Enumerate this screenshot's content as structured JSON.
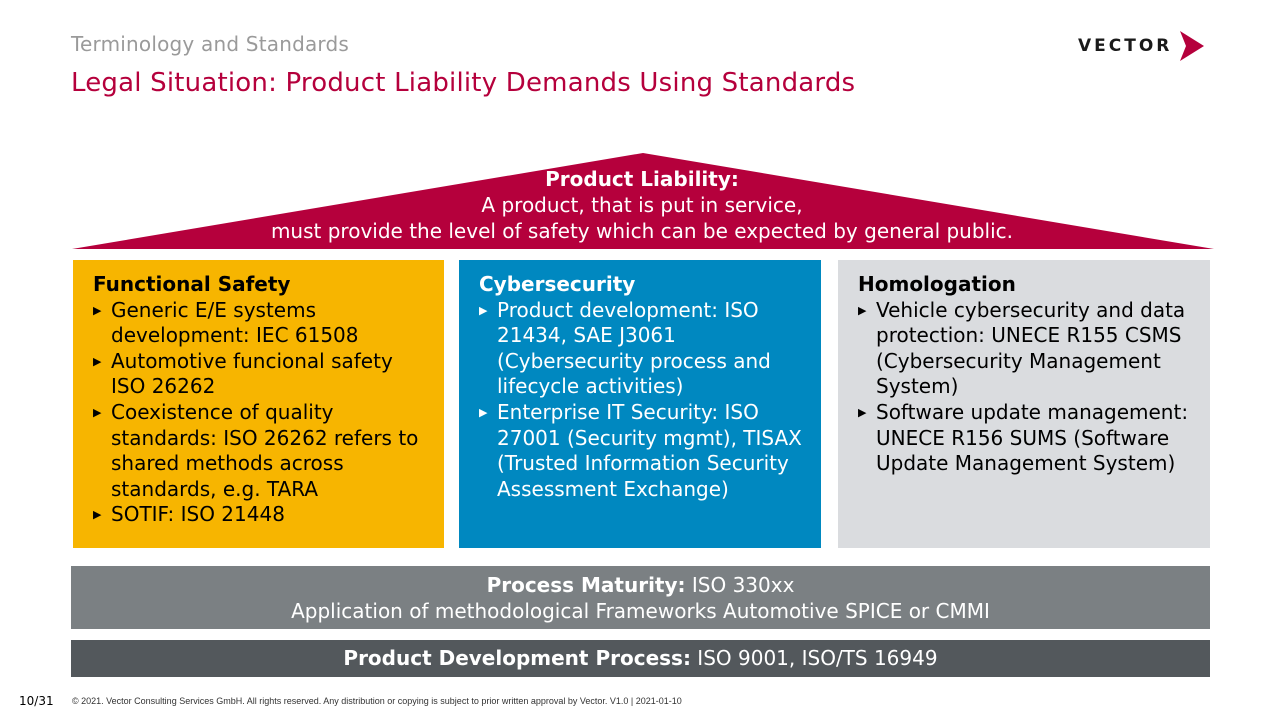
{
  "header": {
    "breadcrumb": "Terminology and Standards",
    "title": "Legal Situation: Product Liability Demands Using Standards",
    "logo_text": "VECTOR"
  },
  "roof": {
    "heading": "Product Liability:",
    "line1": "A product, that is put in service,",
    "line2": "must provide the level of safety which can be expected by general public.",
    "color": "#b5003c"
  },
  "pillars": [
    {
      "title": "Functional Safety",
      "color": "#f7b500",
      "items": [
        "Generic E/E systems development: IEC 61508",
        "Automotive funcional safety ISO 26262",
        "Coexistence of quality standards: ISO 26262 refers to shared methods across standards, e.g. TARA",
        "SOTIF: ISO 21448"
      ]
    },
    {
      "title": "Cybersecurity",
      "color": "#0088c0",
      "items": [
        "Product development: ISO 21434, SAE J3061 (Cybersecurity process and lifecycle activities)",
        "Enterprise IT Security: ISO 27001 (Security mgmt), TISAX (Trusted Information Security Assessment Exchange)"
      ]
    },
    {
      "title": "Homologation",
      "color": "#dadcdf",
      "items": [
        "Vehicle cybersecurity and data protection: UNECE R155 CSMS (Cybersecurity Management System)",
        "Software update management: UNECE R156 SUMS (Software Update Management System)"
      ]
    }
  ],
  "maturity": {
    "label": "Process Maturity:",
    "value": "ISO 330xx",
    "line2": "Application of methodological Frameworks Automotive SPICE or CMMI"
  },
  "process": {
    "label": "Product Development Process:",
    "value": "ISO 9001, ISO/TS 16949"
  },
  "footer": {
    "page": "10/31",
    "copyright": "© 2021. Vector Consulting Services GmbH. All rights reserved. Any distribution or copying is subject to prior written approval by Vector. V1.0 | 2021-01-10"
  }
}
